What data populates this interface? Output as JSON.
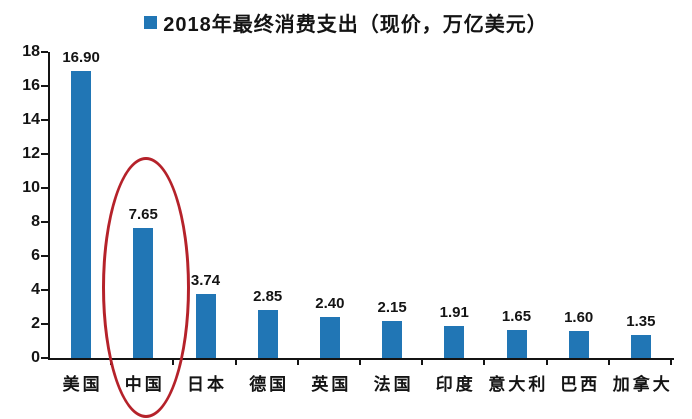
{
  "chart_data": {
    "type": "bar",
    "title": "2018年最终消费支出（现价，万亿美元）",
    "legend": [
      "2018年最终消费支出（现价，万亿美元）"
    ],
    "legend_position": "top-center",
    "categories": [
      "美国",
      "中国",
      "日本",
      "德国",
      "英国",
      "法国",
      "印度",
      "意大利",
      "巴西",
      "加拿大"
    ],
    "values": [
      16.9,
      7.65,
      3.74,
      2.85,
      2.4,
      2.15,
      1.91,
      1.65,
      1.6,
      1.35
    ],
    "value_labels": [
      "16.90",
      "7.65",
      "3.74",
      "2.85",
      "2.40",
      "2.15",
      "1.91",
      "1.65",
      "1.60",
      "1.35"
    ],
    "xlabel": "",
    "ylabel": "",
    "ylim": [
      0,
      18
    ],
    "yticks": [
      0,
      2,
      4,
      6,
      8,
      10,
      12,
      14,
      16,
      18
    ],
    "grid": false,
    "bar_color": "#2176b5",
    "axis_color": "#141414",
    "highlight": {
      "category": "中国",
      "shape": "ellipse",
      "color": "#b5222a"
    }
  }
}
